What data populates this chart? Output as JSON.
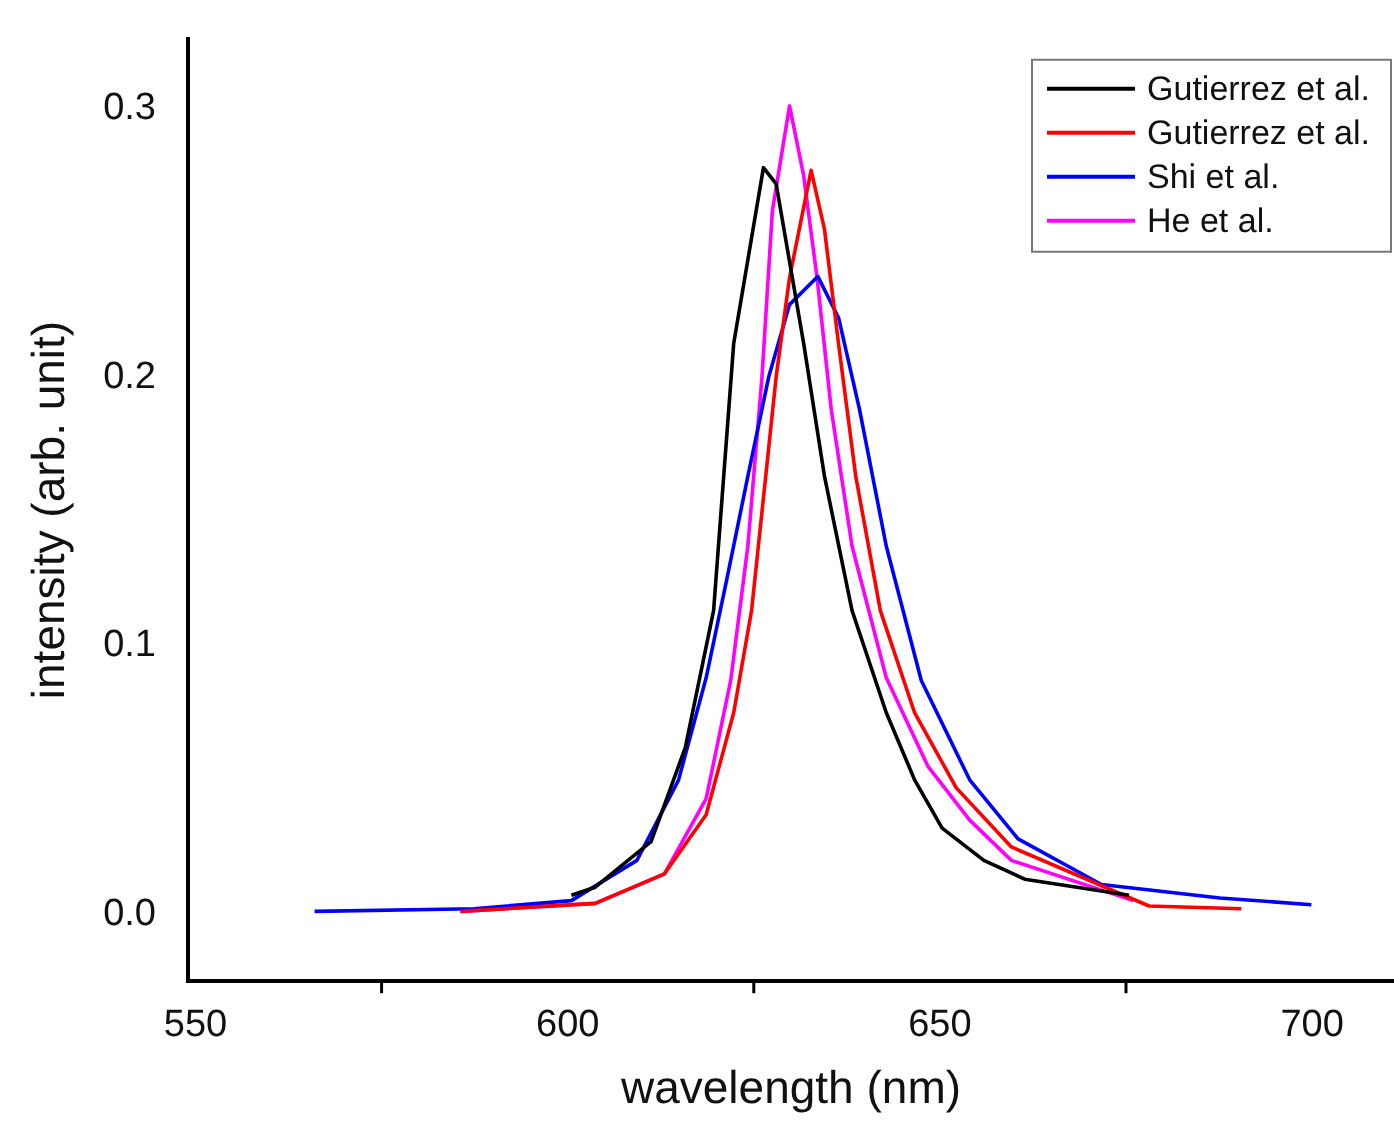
{
  "chart_data": {
    "type": "line",
    "xlabel": "wavelength (nm)",
    "ylabel": "intensity (arb. unit)",
    "xlim": [
      549,
      711
    ],
    "xticks": [
      550,
      {
        "value": 575,
        "label": null
      },
      600,
      {
        "value": 625,
        "label": null
      },
      650,
      {
        "value": 675,
        "label": null
      },
      700
    ],
    "ylim": [
      -0.025,
      0.326
    ],
    "yticks": [
      {
        "value": 0,
        "label": "0.0"
      },
      0.1,
      0.2,
      0.3
    ],
    "grid": false,
    "legend": "top right",
    "marker": "none",
    "line_style": "solid",
    "series": [
      {
        "name": "Gutierrez et al.",
        "color": "#000000",
        "x": [
          600.5,
          603.7,
          611.2,
          615.8,
          619.6,
          622.3,
          626.3,
          628,
          631.7,
          634.5,
          638.2,
          642.8,
          646.6,
          650.3,
          655.9,
          661.4,
          675.4
        ],
        "values": [
          0.007,
          0.01,
          0.027,
          0.062,
          0.113,
          0.2125,
          0.278,
          0.272,
          0.2125,
          0.163,
          0.113,
          0.075,
          0.05,
          0.032,
          0.02,
          0.013,
          0.007
        ]
      },
      {
        "name": "Gutierrez et al.",
        "color": "#ff0000",
        "x": [
          585.6,
          603.7,
          613,
          618.6,
          622.3,
          624.7,
          626.6,
          628,
          629.8,
          632.7,
          634.5,
          636.4,
          638.7,
          642,
          646.6,
          652.2,
          659.6,
          678.1,
          690.5
        ],
        "values": [
          0.001,
          0.004,
          0.015,
          0.037,
          0.075,
          0.113,
          0.163,
          0.2,
          0.237,
          0.277,
          0.255,
          0.212,
          0.163,
          0.113,
          0.075,
          0.047,
          0.025,
          0.003,
          0.002
        ]
      },
      {
        "name": "Shi et al.",
        "color": "#0000ff",
        "x": [
          566,
          587.4,
          600.5,
          609.3,
          614.9,
          618.6,
          621.4,
          624.2,
          627,
          629.8,
          633.6,
          636.4,
          639.2,
          642.8,
          647.5,
          654,
          660.5,
          671.7,
          687.6,
          699.9
        ],
        "values": [
          0.001,
          0.002,
          0.005,
          0.02,
          0.05,
          0.088,
          0.125,
          0.163,
          0.2,
          0.227,
          0.2375,
          0.222,
          0.188,
          0.137,
          0.087,
          0.05,
          0.028,
          0.011,
          0.006,
          0.0035
        ]
      },
      {
        "name": "He et al.",
        "color": "#ff00ff",
        "x": [
          585.6,
          603.7,
          613,
          618.6,
          621.9,
          624.2,
          626.1,
          627.5,
          629.8,
          631.7,
          633.5,
          635.4,
          638.2,
          642.8,
          648.4,
          654,
          659.6,
          676
        ],
        "values": [
          0.001,
          0.004,
          0.015,
          0.043,
          0.087,
          0.137,
          0.2,
          0.262,
          0.301,
          0.275,
          0.237,
          0.188,
          0.137,
          0.088,
          0.055,
          0.035,
          0.02,
          0.005
        ]
      }
    ]
  }
}
